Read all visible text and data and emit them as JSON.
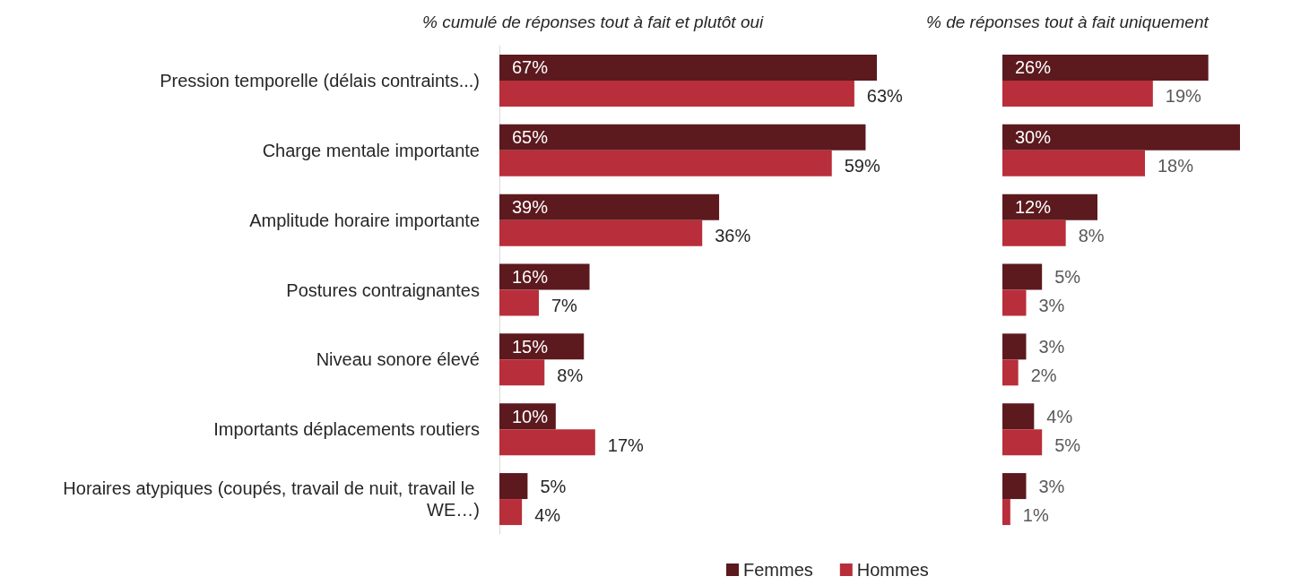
{
  "chart_data": [
    {
      "type": "bar",
      "orientation": "horizontal",
      "title": "% cumulé de réponses tout à fait et plutôt oui",
      "categories": [
        "Pression temporelle (délais contraints...)",
        "Charge mentale importante",
        "Amplitude horaire importante",
        "Postures contraignantes",
        "Niveau sonore élevé",
        "Importants déplacements routiers",
        "Horaires atypiques (coupés, travail de nuit, travail le WE…)"
      ],
      "series": [
        {
          "name": "Femmes",
          "color": "#5c1a1e",
          "values": [
            67,
            65,
            39,
            16,
            15,
            10,
            5
          ],
          "value_labels": [
            "67%",
            "65%",
            "39%",
            "16%",
            "15%",
            "10%",
            "5%"
          ]
        },
        {
          "name": "Hommes",
          "color": "#b82e3a",
          "values": [
            63,
            59,
            36,
            7,
            8,
            17,
            4
          ],
          "value_labels": [
            "63%",
            "59%",
            "36%",
            "7%",
            "8%",
            "17%",
            "4%"
          ]
        }
      ],
      "legend": "bottom"
    },
    {
      "type": "bar",
      "orientation": "horizontal",
      "title": "% de réponses tout à fait uniquement",
      "categories": [
        null,
        null,
        null,
        null,
        null,
        null,
        null
      ],
      "series": [
        {
          "color": "#5c1a1e",
          "values": [
            26,
            30,
            12,
            5,
            3,
            4,
            3
          ],
          "value_labels": [
            "26%",
            "30%",
            "12%",
            "5%",
            "3%",
            "4%",
            "3%"
          ]
        },
        {
          "color": "#b82e3a",
          "values": [
            19,
            18,
            8,
            3,
            2,
            5,
            1
          ],
          "value_labels": [
            "19%",
            "18%",
            "8%",
            "3%",
            "2%",
            "5%",
            "1%"
          ]
        }
      ],
      "legend": false
    }
  ]
}
